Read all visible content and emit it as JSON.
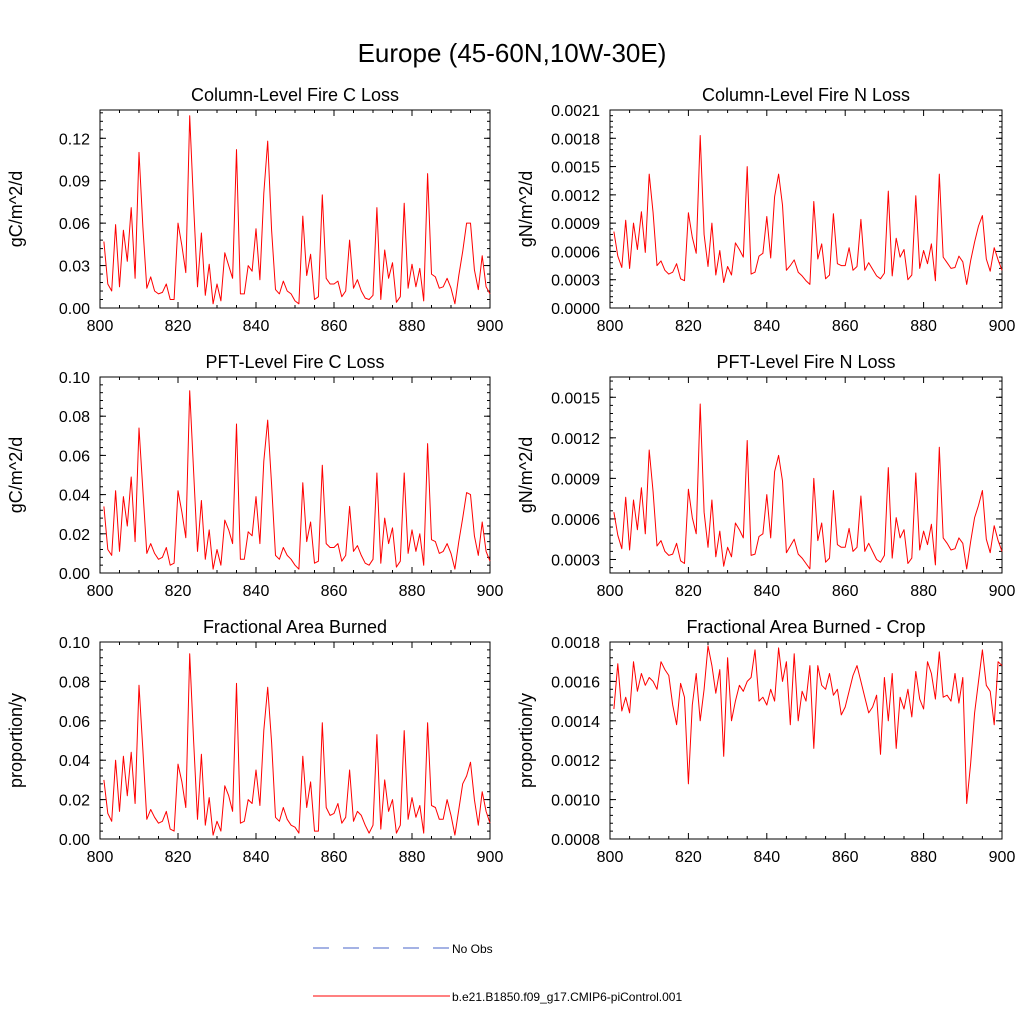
{
  "title": "Europe (45-60N,10W-30E)",
  "series_color": "#ff0000",
  "obs_color": "#4a64c8",
  "legend": {
    "obs_label": "No Obs",
    "model_label": "b.e21.B1850.f09_g17.CMIP6-piControl.001"
  },
  "chart_data": [
    {
      "type": "line",
      "title": "Column-Level Fire C Loss",
      "ylabel": "gC/m^2/d",
      "xlim": [
        800,
        900
      ],
      "ylim": [
        0,
        0.14
      ],
      "xticks": [
        800,
        820,
        840,
        860,
        880,
        900
      ],
      "xtick_labels": [
        "800",
        "820",
        "840",
        "860",
        "880",
        "900"
      ],
      "yticks": [
        0,
        0.03,
        0.06,
        0.09,
        0.12
      ],
      "ytick_labels": [
        "0.00",
        "0.03",
        "0.06",
        "0.09",
        "0.12"
      ],
      "x_start": 801,
      "values": [
        0.047,
        0.017,
        0.012,
        0.059,
        0.015,
        0.055,
        0.033,
        0.071,
        0.021,
        0.11,
        0.057,
        0.014,
        0.022,
        0.012,
        0.01,
        0.011,
        0.017,
        0.006,
        0.006,
        0.06,
        0.044,
        0.025,
        0.136,
        0.073,
        0.015,
        0.053,
        0.009,
        0.031,
        0.003,
        0.017,
        0.005,
        0.039,
        0.03,
        0.021,
        0.112,
        0.01,
        0.01,
        0.03,
        0.026,
        0.056,
        0.02,
        0.081,
        0.118,
        0.055,
        0.013,
        0.01,
        0.019,
        0.012,
        0.01,
        0.005,
        0.003,
        0.065,
        0.023,
        0.038,
        0.006,
        0.008,
        0.08,
        0.021,
        0.017,
        0.017,
        0.019,
        0.008,
        0.012,
        0.048,
        0.014,
        0.02,
        0.012,
        0.007,
        0.006,
        0.009,
        0.071,
        0.006,
        0.041,
        0.021,
        0.032,
        0.004,
        0.008,
        0.074,
        0.014,
        0.031,
        0.015,
        0.028,
        0.005,
        0.095,
        0.024,
        0.022,
        0.014,
        0.015,
        0.021,
        0.014,
        0.003,
        0.023,
        0.04,
        0.06,
        0.06,
        0.027,
        0.013,
        0.037,
        0.015,
        0.01
      ]
    },
    {
      "type": "line",
      "title": "Column-Level Fire N Loss",
      "ylabel": "gN/m^2/d",
      "xlim": [
        800,
        900
      ],
      "ylim": [
        0,
        0.0021
      ],
      "xticks": [
        800,
        820,
        840,
        860,
        880,
        900
      ],
      "xtick_labels": [
        "800",
        "820",
        "840",
        "860",
        "880",
        "900"
      ],
      "yticks": [
        0,
        0.0003,
        0.0006,
        0.0009,
        0.0012,
        0.0015,
        0.0018,
        0.0021
      ],
      "ytick_labels": [
        "0.0000",
        "0.0003",
        "0.0006",
        "0.0009",
        "0.0012",
        "0.0015",
        "0.0018",
        "0.0021"
      ],
      "x_start": 801,
      "values": [
        0.00081,
        0.00055,
        0.00043,
        0.00093,
        0.00042,
        0.0009,
        0.00062,
        0.00102,
        0.00059,
        0.00142,
        0.00101,
        0.00045,
        0.0005,
        0.0004,
        0.00036,
        0.00038,
        0.00047,
        0.00031,
        0.00029,
        0.00101,
        0.00075,
        0.00058,
        0.00183,
        0.00078,
        0.00044,
        0.0009,
        0.00035,
        0.00061,
        0.00027,
        0.00044,
        0.00035,
        0.00069,
        0.00062,
        0.00054,
        0.0015,
        0.00036,
        0.00038,
        0.00055,
        0.00058,
        0.00097,
        0.00053,
        0.00118,
        0.00142,
        0.00109,
        0.0004,
        0.00045,
        0.00051,
        0.00038,
        0.00034,
        0.00029,
        0.00025,
        0.00113,
        0.00052,
        0.00068,
        0.00031,
        0.00035,
        0.001,
        0.00047,
        0.00045,
        0.00045,
        0.00064,
        0.0004,
        0.00044,
        0.00094,
        0.0004,
        0.00048,
        0.00041,
        0.00034,
        0.00031,
        0.00037,
        0.00124,
        0.00034,
        0.00074,
        0.00054,
        0.00062,
        0.0003,
        0.00035,
        0.00119,
        0.00042,
        0.00061,
        0.00047,
        0.00068,
        0.00029,
        0.00142,
        0.00054,
        0.00048,
        0.00042,
        0.00043,
        0.00055,
        0.00049,
        0.00025,
        0.0005,
        0.0007,
        0.00087,
        0.00098,
        0.00052,
        0.00039,
        0.00064,
        0.00051,
        0.0004
      ]
    },
    {
      "type": "line",
      "title": "PFT-Level Fire C Loss",
      "ylabel": "gC/m^2/d",
      "xlim": [
        800,
        900
      ],
      "ylim": [
        0,
        0.1
      ],
      "xticks": [
        800,
        820,
        840,
        860,
        880,
        900
      ],
      "xtick_labels": [
        "800",
        "820",
        "840",
        "860",
        "880",
        "900"
      ],
      "yticks": [
        0,
        0.02,
        0.04,
        0.06,
        0.08,
        0.1
      ],
      "ytick_labels": [
        "0.00",
        "0.02",
        "0.04",
        "0.06",
        "0.08",
        "0.10"
      ],
      "x_start": 801,
      "values": [
        0.034,
        0.012,
        0.009,
        0.042,
        0.011,
        0.039,
        0.024,
        0.049,
        0.016,
        0.074,
        0.042,
        0.01,
        0.015,
        0.01,
        0.007,
        0.008,
        0.013,
        0.004,
        0.005,
        0.042,
        0.031,
        0.018,
        0.093,
        0.052,
        0.011,
        0.037,
        0.007,
        0.022,
        0.002,
        0.012,
        0.004,
        0.027,
        0.022,
        0.015,
        0.076,
        0.007,
        0.007,
        0.021,
        0.019,
        0.039,
        0.015,
        0.057,
        0.078,
        0.045,
        0.009,
        0.007,
        0.013,
        0.009,
        0.007,
        0.004,
        0.002,
        0.046,
        0.016,
        0.026,
        0.005,
        0.006,
        0.055,
        0.015,
        0.013,
        0.013,
        0.015,
        0.006,
        0.009,
        0.034,
        0.011,
        0.014,
        0.009,
        0.005,
        0.004,
        0.007,
        0.051,
        0.005,
        0.028,
        0.015,
        0.023,
        0.003,
        0.006,
        0.051,
        0.01,
        0.022,
        0.011,
        0.02,
        0.004,
        0.066,
        0.017,
        0.016,
        0.01,
        0.011,
        0.015,
        0.01,
        0.002,
        0.016,
        0.028,
        0.041,
        0.04,
        0.019,
        0.009,
        0.026,
        0.011,
        0.006
      ]
    },
    {
      "type": "line",
      "title": "PFT-Level Fire N Loss",
      "ylabel": "gN/m^2/d",
      "xlim": [
        800,
        900
      ],
      "ylim": [
        0.0002,
        0.00165
      ],
      "xticks": [
        800,
        820,
        840,
        860,
        880,
        900
      ],
      "xtick_labels": [
        "800",
        "820",
        "840",
        "860",
        "880",
        "900"
      ],
      "yticks": [
        0.0003,
        0.0006,
        0.0009,
        0.0012,
        0.0015
      ],
      "ytick_labels": [
        "0.0003",
        "0.0006",
        "0.0009",
        "0.0012",
        "0.0015"
      ],
      "x_start": 801,
      "values": [
        0.00065,
        0.00048,
        0.00038,
        0.00076,
        0.00037,
        0.00074,
        0.00052,
        0.00083,
        0.00049,
        0.00111,
        0.0008,
        0.0004,
        0.00044,
        0.00036,
        0.00033,
        0.00034,
        0.00042,
        0.00029,
        0.00027,
        0.00082,
        0.00061,
        0.00049,
        0.00145,
        0.00065,
        0.00039,
        0.00074,
        0.00032,
        0.00051,
        0.00025,
        0.00039,
        0.00032,
        0.00057,
        0.00052,
        0.00046,
        0.00118,
        0.00033,
        0.00034,
        0.00047,
        0.00049,
        0.00078,
        0.00046,
        0.00095,
        0.00107,
        0.00088,
        0.00035,
        0.0004,
        0.00045,
        0.00034,
        0.00031,
        0.00027,
        0.00023,
        0.0009,
        0.00044,
        0.00057,
        0.00028,
        0.00031,
        0.00081,
        0.00041,
        0.00039,
        0.00039,
        0.00053,
        0.00036,
        0.00039,
        0.00077,
        0.00036,
        0.00042,
        0.00036,
        0.0003,
        0.00028,
        0.00033,
        0.00098,
        0.00031,
        0.00061,
        0.00046,
        0.00052,
        0.00027,
        0.00031,
        0.00094,
        0.00037,
        0.00051,
        0.00041,
        0.00056,
        0.00026,
        0.00113,
        0.00046,
        0.00042,
        0.00037,
        0.00038,
        0.00046,
        0.00042,
        0.00023,
        0.00043,
        0.00061,
        0.0007,
        0.00081,
        0.00045,
        0.00035,
        0.00055,
        0.00044,
        0.00036
      ]
    },
    {
      "type": "line",
      "title": "Fractional Area Burned",
      "ylabel": "proportion/y",
      "xlim": [
        800,
        900
      ],
      "ylim": [
        0,
        0.1
      ],
      "xticks": [
        800,
        820,
        840,
        860,
        880,
        900
      ],
      "xtick_labels": [
        "800",
        "820",
        "840",
        "860",
        "880",
        "900"
      ],
      "yticks": [
        0,
        0.02,
        0.04,
        0.06,
        0.08,
        0.1
      ],
      "ytick_labels": [
        "0.00",
        "0.02",
        "0.04",
        "0.06",
        "0.08",
        "0.10"
      ],
      "x_start": 801,
      "values": [
        0.03,
        0.013,
        0.009,
        0.04,
        0.014,
        0.042,
        0.022,
        0.044,
        0.018,
        0.078,
        0.045,
        0.01,
        0.015,
        0.011,
        0.008,
        0.009,
        0.014,
        0.005,
        0.004,
        0.038,
        0.029,
        0.016,
        0.094,
        0.05,
        0.01,
        0.043,
        0.007,
        0.021,
        0.002,
        0.009,
        0.004,
        0.027,
        0.022,
        0.014,
        0.079,
        0.008,
        0.009,
        0.02,
        0.018,
        0.035,
        0.017,
        0.055,
        0.077,
        0.049,
        0.011,
        0.009,
        0.016,
        0.01,
        0.007,
        0.006,
        0.003,
        0.042,
        0.016,
        0.029,
        0.004,
        0.004,
        0.059,
        0.016,
        0.012,
        0.013,
        0.018,
        0.008,
        0.011,
        0.035,
        0.009,
        0.014,
        0.012,
        0.007,
        0.003,
        0.007,
        0.053,
        0.005,
        0.03,
        0.014,
        0.02,
        0.003,
        0.007,
        0.055,
        0.01,
        0.021,
        0.011,
        0.017,
        0.003,
        0.059,
        0.017,
        0.016,
        0.01,
        0.01,
        0.02,
        0.012,
        0.002,
        0.015,
        0.028,
        0.032,
        0.039,
        0.02,
        0.007,
        0.024,
        0.014,
        0.008
      ]
    },
    {
      "type": "line",
      "title": "Fractional Area Burned - Crop",
      "ylabel": "proportion/y",
      "xlim": [
        800,
        900
      ],
      "ylim": [
        0.0008,
        0.0018
      ],
      "xticks": [
        800,
        820,
        840,
        860,
        880,
        900
      ],
      "xtick_labels": [
        "800",
        "820",
        "840",
        "860",
        "880",
        "900"
      ],
      "yticks": [
        0.0008,
        0.001,
        0.0012,
        0.0014,
        0.0016,
        0.0018
      ],
      "ytick_labels": [
        "0.0008",
        "0.0010",
        "0.0012",
        "0.0014",
        "0.0016",
        "0.0018"
      ],
      "x_start": 801,
      "values": [
        0.00146,
        0.00169,
        0.00145,
        0.00152,
        0.00144,
        0.0017,
        0.00155,
        0.00164,
        0.00158,
        0.00162,
        0.0016,
        0.00156,
        0.0017,
        0.00166,
        0.00163,
        0.00148,
        0.00138,
        0.00159,
        0.00152,
        0.00108,
        0.00148,
        0.00164,
        0.0014,
        0.00156,
        0.00178,
        0.00168,
        0.00154,
        0.00166,
        0.00122,
        0.00172,
        0.0014,
        0.0015,
        0.00158,
        0.00155,
        0.0016,
        0.00162,
        0.00176,
        0.0015,
        0.00152,
        0.00148,
        0.00156,
        0.0015,
        0.00177,
        0.0016,
        0.0017,
        0.00138,
        0.00174,
        0.0014,
        0.00155,
        0.0015,
        0.00168,
        0.00126,
        0.00168,
        0.00158,
        0.00156,
        0.00164,
        0.00153,
        0.00156,
        0.00143,
        0.00147,
        0.00155,
        0.00163,
        0.00168,
        0.0016,
        0.00152,
        0.00144,
        0.00147,
        0.00153,
        0.00123,
        0.00162,
        0.0014,
        0.00164,
        0.00126,
        0.00152,
        0.00146,
        0.00156,
        0.00142,
        0.00165,
        0.00151,
        0.00146,
        0.0017,
        0.00164,
        0.00151,
        0.00175,
        0.00152,
        0.00153,
        0.0015,
        0.00164,
        0.00149,
        0.00162,
        0.00098,
        0.00118,
        0.00144,
        0.0016,
        0.00176,
        0.00158,
        0.00155,
        0.00138,
        0.0017,
        0.00168
      ]
    }
  ]
}
